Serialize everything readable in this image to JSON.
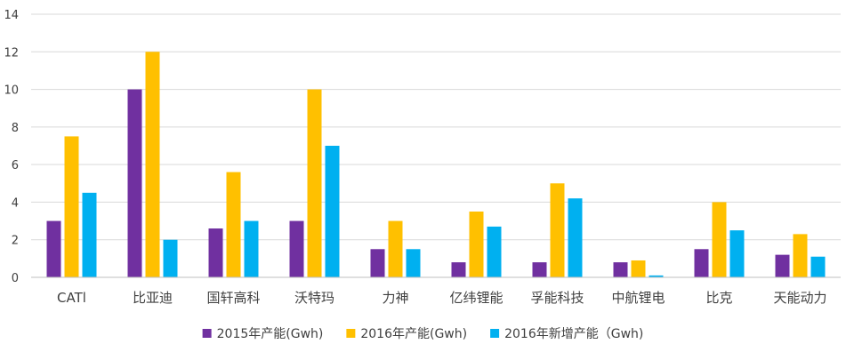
{
  "chart_data": {
    "type": "bar",
    "title": "",
    "xlabel": "",
    "ylabel": "",
    "ylim": [
      0,
      14
    ],
    "yticks": [
      0,
      2,
      4,
      6,
      8,
      10,
      12,
      14
    ],
    "ytick_labels": [
      "0",
      "2",
      "4",
      "6",
      "8",
      "10",
      "12",
      "14"
    ],
    "grid": true,
    "legend_position": "bottom",
    "categories": [
      "CATl",
      "比亚迪",
      "国轩高科",
      "沃特玛",
      "力神",
      "亿纬锂能",
      "孚能科技",
      "中航锂电",
      "比克",
      "天能动力"
    ],
    "series": [
      {
        "name": "2015年产能(Gwh)",
        "color": "#7030A0",
        "values": [
          3.0,
          10.0,
          2.6,
          3.0,
          1.5,
          0.8,
          0.8,
          0.8,
          1.5,
          1.2
        ]
      },
      {
        "name": "2016年产能(Gwh)",
        "color": "#FFC000",
        "values": [
          7.5,
          12.0,
          5.6,
          10.0,
          3.0,
          3.5,
          5.0,
          0.9,
          4.0,
          2.3
        ]
      },
      {
        "name": "2016年新增产能（Gwh)",
        "color": "#00B0F0",
        "values": [
          4.5,
          2.0,
          3.0,
          7.0,
          1.5,
          2.7,
          4.2,
          0.1,
          2.5,
          1.1
        ]
      }
    ],
    "colors": {
      "grid": "#D9D9D9",
      "axis": "#BFBFBF",
      "text": "#404040"
    }
  }
}
